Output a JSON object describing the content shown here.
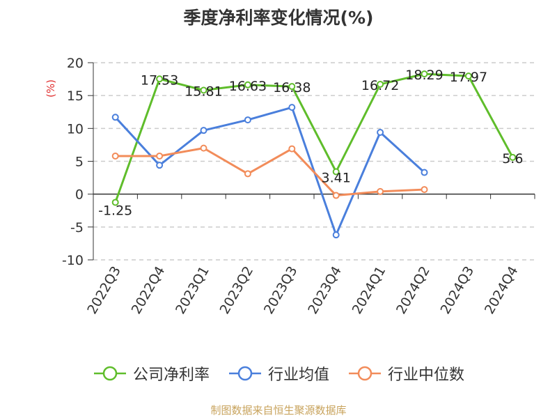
{
  "chart_data": {
    "type": "line",
    "title": "季度净利率变化情况(%)",
    "ylabel": "(%)",
    "xlabel": "",
    "categories": [
      "2022Q3",
      "2022Q4",
      "2023Q1",
      "2023Q2",
      "2023Q3",
      "2023Q4",
      "2024Q1",
      "2024Q2",
      "2024Q3",
      "2024Q4"
    ],
    "ylim": [
      -10,
      20
    ],
    "yticks": [
      -10,
      -5,
      0,
      5,
      10,
      15,
      20
    ],
    "grid": true,
    "legend_position": "bottom",
    "series": [
      {
        "name": "公司净利率",
        "color": "#5fbd2b",
        "values": [
          -1.25,
          17.53,
          15.81,
          16.63,
          16.38,
          3.41,
          16.72,
          18.29,
          17.97,
          5.6
        ],
        "labels": [
          "-1.25",
          "17.53",
          "15.81",
          "16.63",
          "16.38",
          "3.41",
          "16.72",
          "18.29",
          "17.97",
          "5.6"
        ]
      },
      {
        "name": "行业均值",
        "color": "#4a7fdc",
        "values": [
          11.7,
          4.4,
          9.7,
          11.3,
          13.2,
          -6.2,
          9.4,
          3.3,
          null,
          null
        ]
      },
      {
        "name": "行业中位数",
        "color": "#f28c5a",
        "values": [
          5.8,
          5.8,
          7.0,
          3.1,
          6.9,
          -0.2,
          0.4,
          0.7,
          null,
          null
        ]
      }
    ]
  },
  "source_note": "制图数据来自恒生聚源数据库"
}
